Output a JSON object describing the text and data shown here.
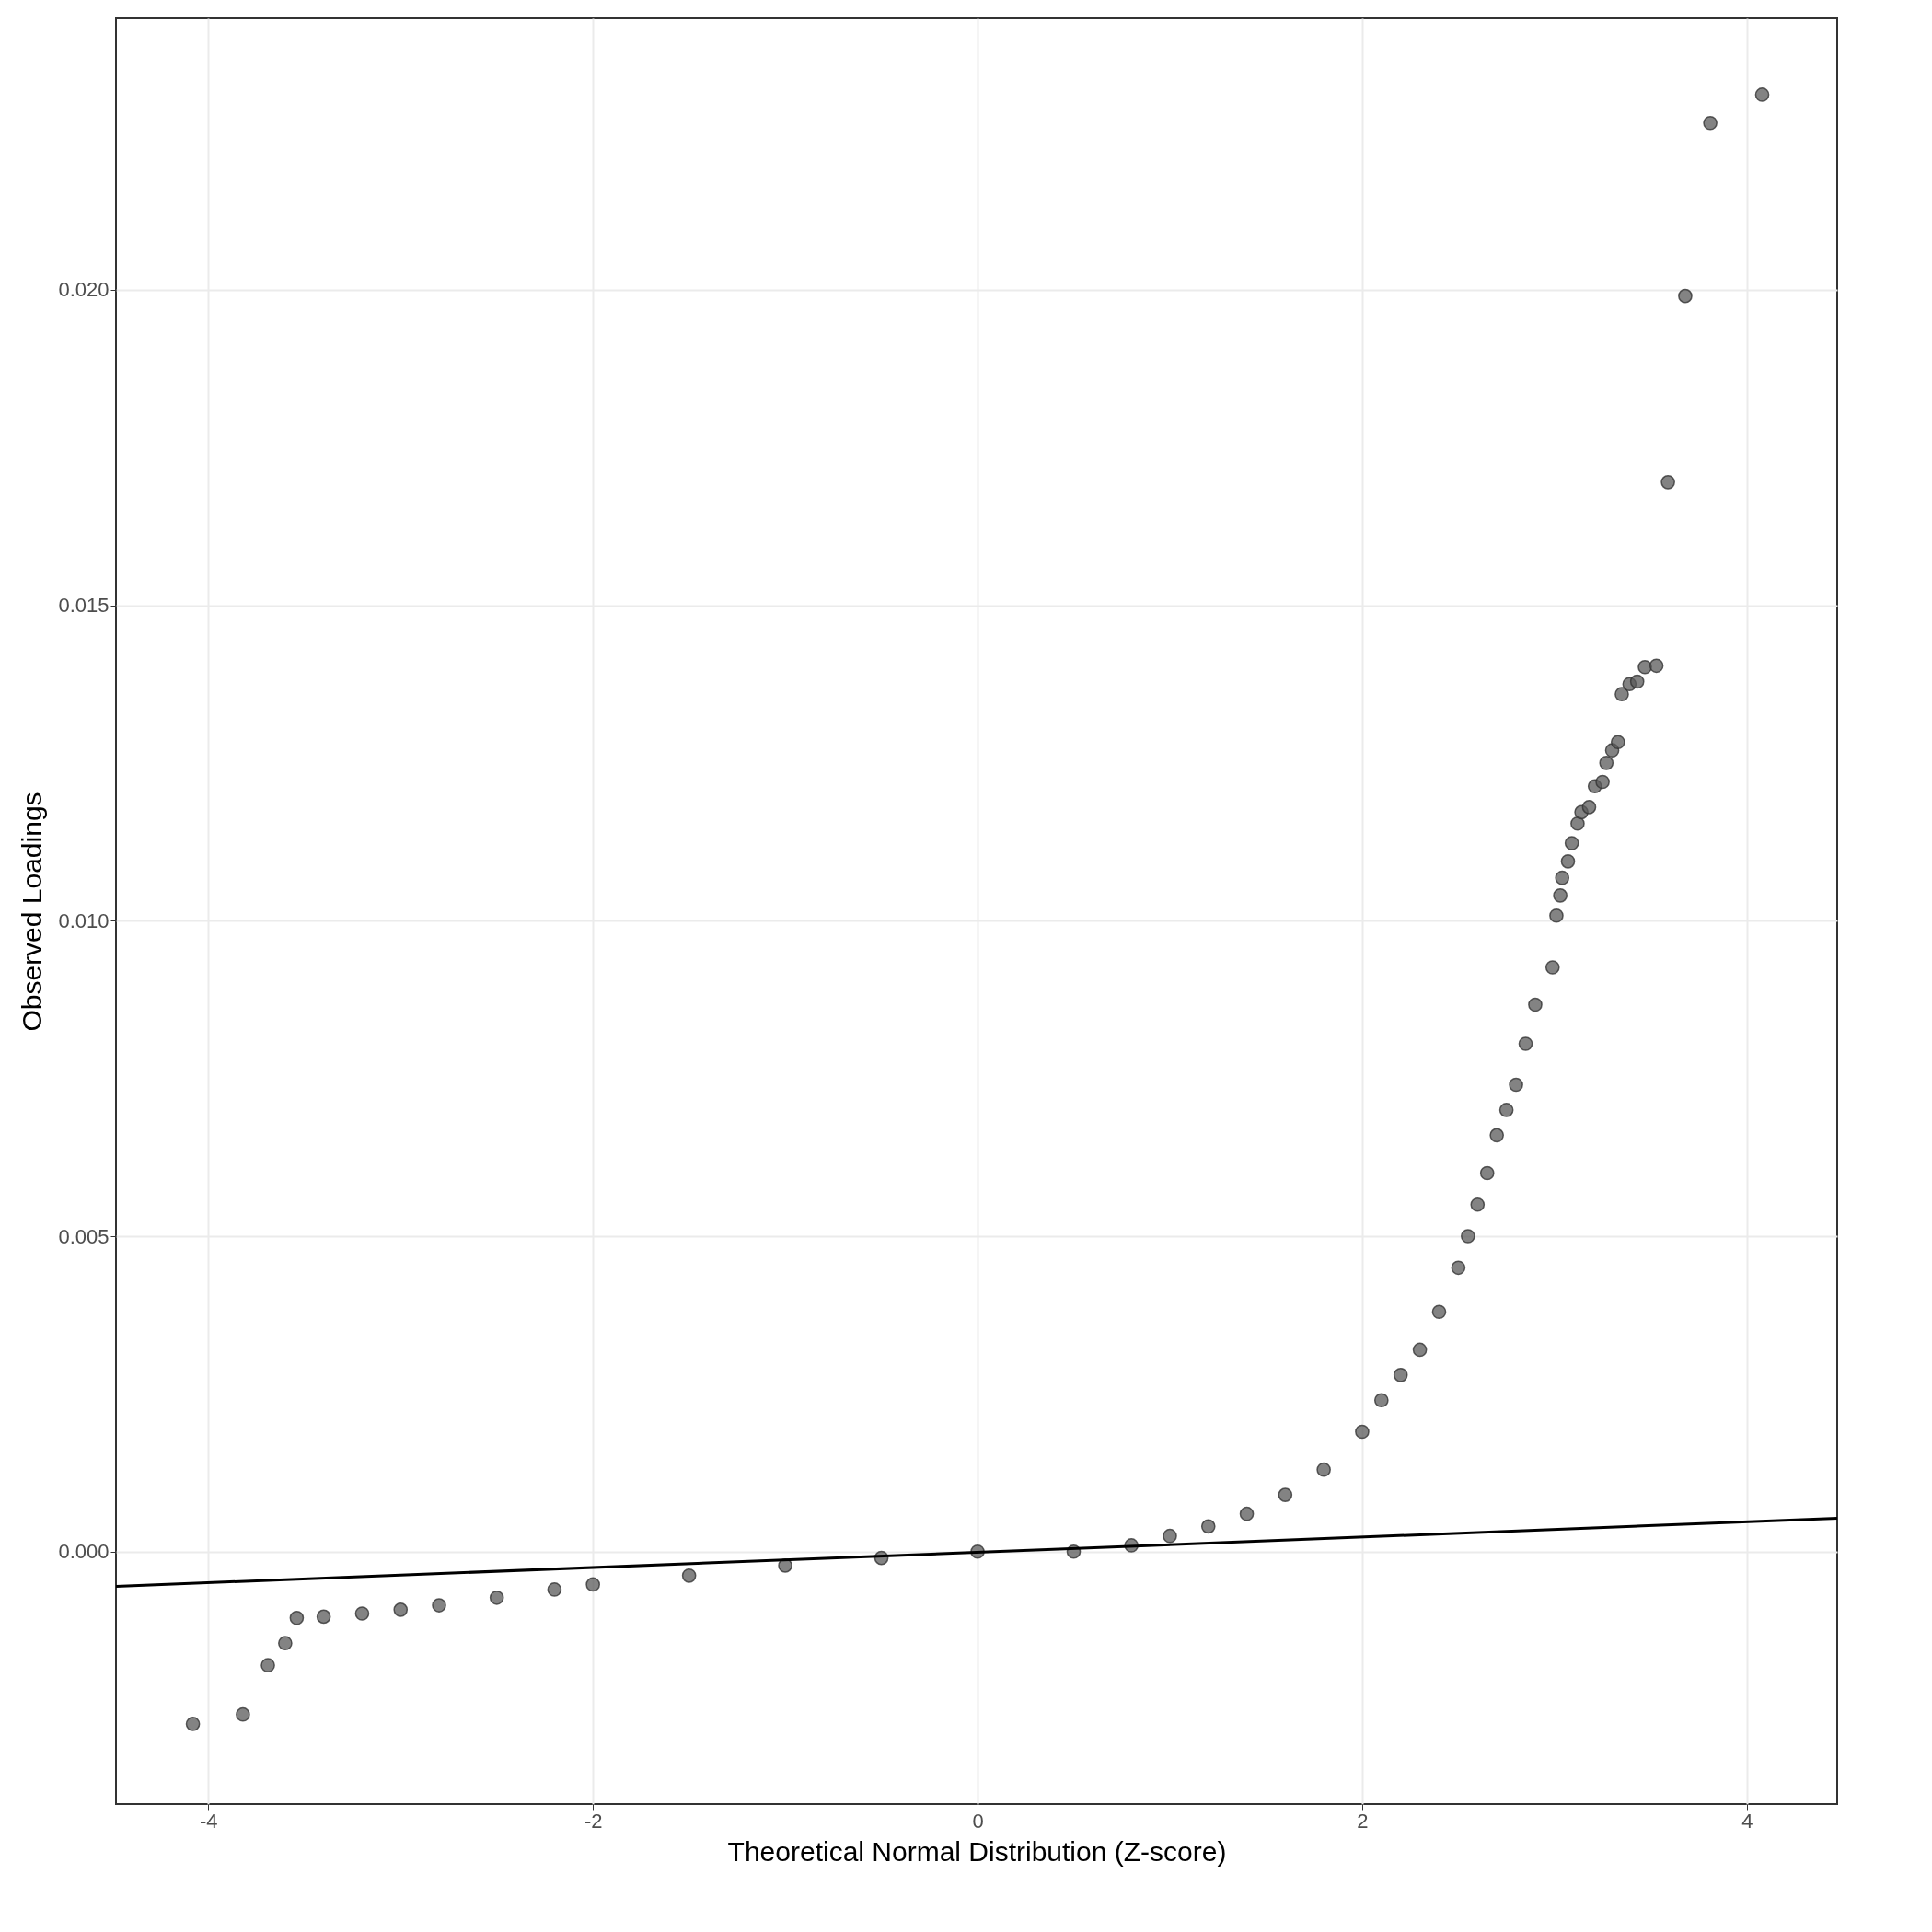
{
  "chart_data": {
    "type": "scatter",
    "xlabel": "Theoretical Normal Distribution (Z-score)",
    "ylabel": "Observed Loadings",
    "xlim": [
      -4.48,
      4.47
    ],
    "ylim": [
      -0.004,
      0.0243
    ],
    "xticks": [
      -4,
      -2,
      0,
      2,
      4
    ],
    "yticks": [
      {
        "value": 0,
        "label": "0.000"
      },
      0.005,
      {
        "value": 0.01,
        "label": "0.010"
      },
      0.015,
      {
        "value": 0.02,
        "label": "0.020"
      }
    ],
    "grid": true,
    "series": [
      {
        "marker": "circle",
        "color": "#595959",
        "x": [
          -4.08,
          -3.82,
          -3.69,
          -3.6,
          -3.54,
          -3.4,
          -3.2,
          -3.0,
          -2.8,
          -2.5,
          -2.2,
          -2.0,
          -1.5,
          -1.0,
          -0.5,
          0,
          0.5,
          0.8,
          1.0,
          1.2,
          1.4,
          1.6,
          1.8,
          2.0,
          2.1,
          2.2,
          2.3,
          2.4,
          2.5,
          2.55,
          2.6,
          2.65,
          2.7,
          2.75,
          2.8,
          2.85,
          2.9,
          2.99,
          3.01,
          3.03,
          3.04,
          3.07,
          3.09,
          3.12,
          3.14,
          3.18,
          3.21,
          3.25,
          3.27,
          3.3,
          3.33,
          3.35,
          3.39,
          3.43,
          3.47,
          3.53,
          3.59,
          3.68,
          3.81,
          4.08
        ],
        "values": [
          -0.00273,
          -0.00258,
          -0.0018,
          -0.00145,
          -0.00105,
          -0.00103,
          -0.00098,
          -0.00092,
          -0.00085,
          -0.00073,
          -0.0006,
          -0.00052,
          -0.00038,
          -0.00022,
          -0.0001,
          0.0,
          0.0,
          0.0001,
          0.00025,
          0.0004,
          0.0006,
          0.0009,
          0.0013,
          0.0019,
          0.0024,
          0.0028,
          0.0032,
          0.0038,
          0.0045,
          0.005,
          0.0055,
          0.006,
          0.0066,
          0.007,
          0.0074,
          0.00805,
          0.00867,
          0.00926,
          0.01008,
          0.0104,
          0.01068,
          0.01094,
          0.01123,
          0.01154,
          0.01172,
          0.0118,
          0.01213,
          0.0122,
          0.0125,
          0.0127,
          0.01283,
          0.01359,
          0.01375,
          0.01379,
          0.01402,
          0.01404,
          0.01695,
          0.0199,
          0.02264,
          0.02309
        ]
      },
      {
        "type": "line",
        "color": "#000000",
        "x": [
          -4.48,
          4.47
        ],
        "values": [
          -0.00055,
          0.00053
        ]
      }
    ]
  }
}
